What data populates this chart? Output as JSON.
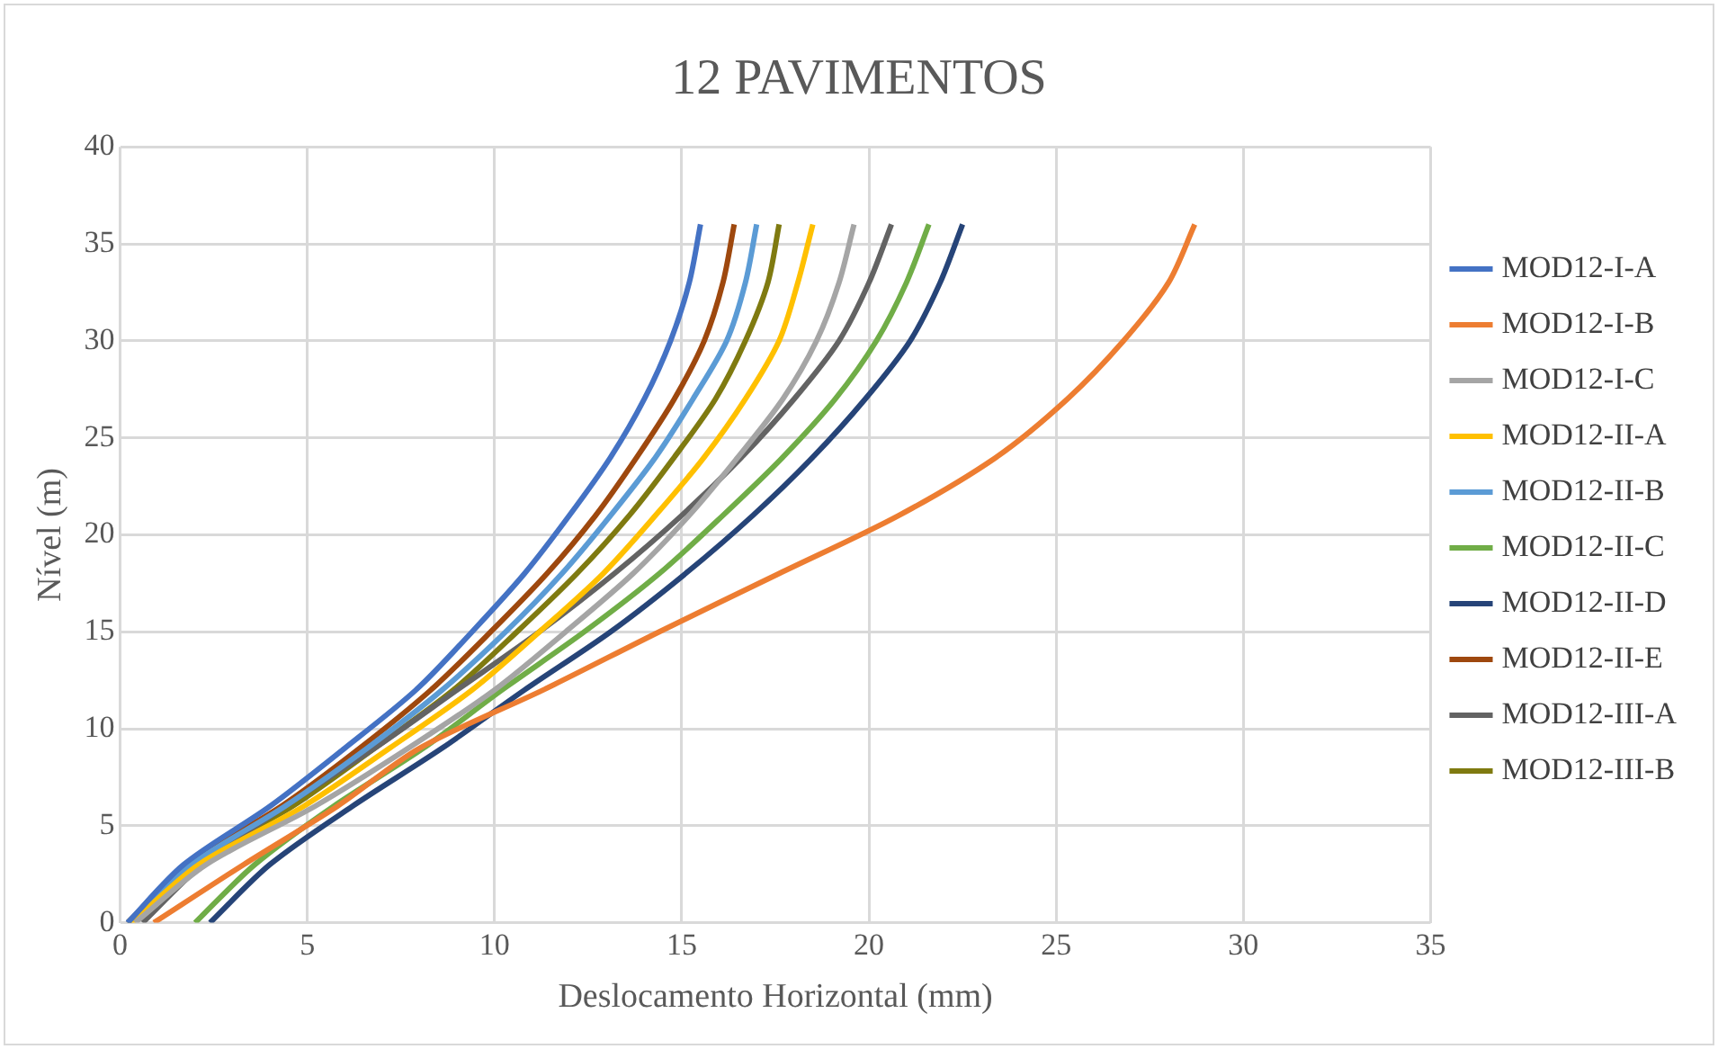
{
  "chart_data": {
    "type": "line",
    "title": "12 PAVIMENTOS",
    "xlabel": "Deslocamento Horizontal (mm)",
    "ylabel": "Nível (m)",
    "xlim": [
      0,
      35
    ],
    "xticks": [
      0,
      5,
      10,
      15,
      20,
      25,
      30,
      35
    ],
    "ylim": [
      0,
      40
    ],
    "yticks": [
      0,
      5,
      10,
      15,
      20,
      25,
      30,
      35,
      40
    ],
    "grid": true,
    "legend": "right",
    "marker": "none",
    "line_style": "solid",
    "series": [
      {
        "name": "MOD12-I-A",
        "color": "#4472c4",
        "values": [
          0,
          3,
          6,
          9,
          12,
          15,
          18,
          21,
          24,
          27,
          30,
          33,
          36
        ],
        "x": [
          0.2,
          1.7,
          4.0,
          6.0,
          7.9,
          9.4,
          10.8,
          12.0,
          13.1,
          14.0,
          14.7,
          15.2,
          15.5
        ]
      },
      {
        "name": "MOD12-I-B",
        "color": "#ed7d31",
        "values": [
          0,
          3,
          6,
          9,
          12,
          15,
          18,
          21,
          24,
          27,
          30,
          33,
          36
        ],
        "x": [
          0.9,
          3.3,
          5.8,
          8.0,
          11.3,
          14.4,
          17.6,
          20.8,
          23.4,
          25.3,
          26.8,
          28.0,
          28.7
        ]
      },
      {
        "name": "MOD12-I-C",
        "color": "#a5a5a5",
        "values": [
          0,
          3,
          6,
          9,
          12,
          15,
          18,
          21,
          24,
          27,
          30,
          33,
          36
        ],
        "x": [
          0.4,
          2.3,
          5.2,
          7.7,
          10.0,
          11.9,
          13.7,
          15.2,
          16.5,
          17.7,
          18.6,
          19.2,
          19.6
        ]
      },
      {
        "name": "MOD12-II-A",
        "color": "#ffc000",
        "values": [
          0,
          3,
          6,
          9,
          12,
          15,
          18,
          21,
          24,
          27,
          30,
          33,
          36
        ],
        "x": [
          0.3,
          2.1,
          4.9,
          7.2,
          9.4,
          11.2,
          12.9,
          14.3,
          15.6,
          16.7,
          17.6,
          18.1,
          18.5
        ]
      },
      {
        "name": "MOD12-II-B",
        "color": "#5b9bd5",
        "values": [
          0,
          3,
          6,
          9,
          12,
          15,
          18,
          21,
          24,
          27,
          30,
          33,
          36
        ],
        "x": [
          0.2,
          1.9,
          4.4,
          6.6,
          8.6,
          10.3,
          11.8,
          13.1,
          14.3,
          15.3,
          16.2,
          16.7,
          17.0
        ]
      },
      {
        "name": "MOD12-II-C",
        "color": "#70ad47",
        "values": [
          0,
          3,
          6,
          9,
          12,
          15,
          18,
          21,
          24,
          27,
          30,
          33,
          36
        ],
        "x": [
          2.0,
          3.6,
          5.7,
          8.1,
          10.2,
          12.4,
          14.4,
          16.1,
          17.7,
          19.1,
          20.2,
          21.0,
          21.6
        ]
      },
      {
        "name": "MOD12-II-D",
        "color": "#264478",
        "values": [
          0,
          3,
          6,
          9,
          12,
          15,
          18,
          21,
          24,
          27,
          30,
          33,
          36
        ],
        "x": [
          2.4,
          4.0,
          6.2,
          8.6,
          10.8,
          13.1,
          15.1,
          16.9,
          18.5,
          19.9,
          21.1,
          21.9,
          22.5
        ]
      },
      {
        "name": "MOD12-II-E",
        "color": "#9e480e",
        "values": [
          0,
          3,
          6,
          9,
          12,
          15,
          18,
          21,
          24,
          27,
          30,
          33,
          36
        ],
        "x": [
          0.2,
          1.8,
          4.3,
          6.4,
          8.3,
          9.9,
          11.4,
          12.7,
          13.8,
          14.8,
          15.6,
          16.1,
          16.4
        ]
      },
      {
        "name": "MOD12-III-A",
        "color": "#636363",
        "values": [
          0,
          3,
          6,
          9,
          12,
          15,
          18,
          21,
          24,
          27,
          30,
          33,
          36
        ],
        "x": [
          0.6,
          2.2,
          4.4,
          6.8,
          9.0,
          11.2,
          13.2,
          15.0,
          16.6,
          18.0,
          19.2,
          20.0,
          20.6
        ]
      },
      {
        "name": "MOD12-III-B",
        "color": "#7f7a10",
        "values": [
          0,
          3,
          6,
          9,
          12,
          15,
          18,
          21,
          24,
          27,
          30,
          33,
          36
        ],
        "x": [
          0.2,
          1.9,
          4.6,
          6.8,
          8.9,
          10.6,
          12.2,
          13.6,
          14.8,
          15.9,
          16.7,
          17.3,
          17.6
        ]
      }
    ]
  }
}
